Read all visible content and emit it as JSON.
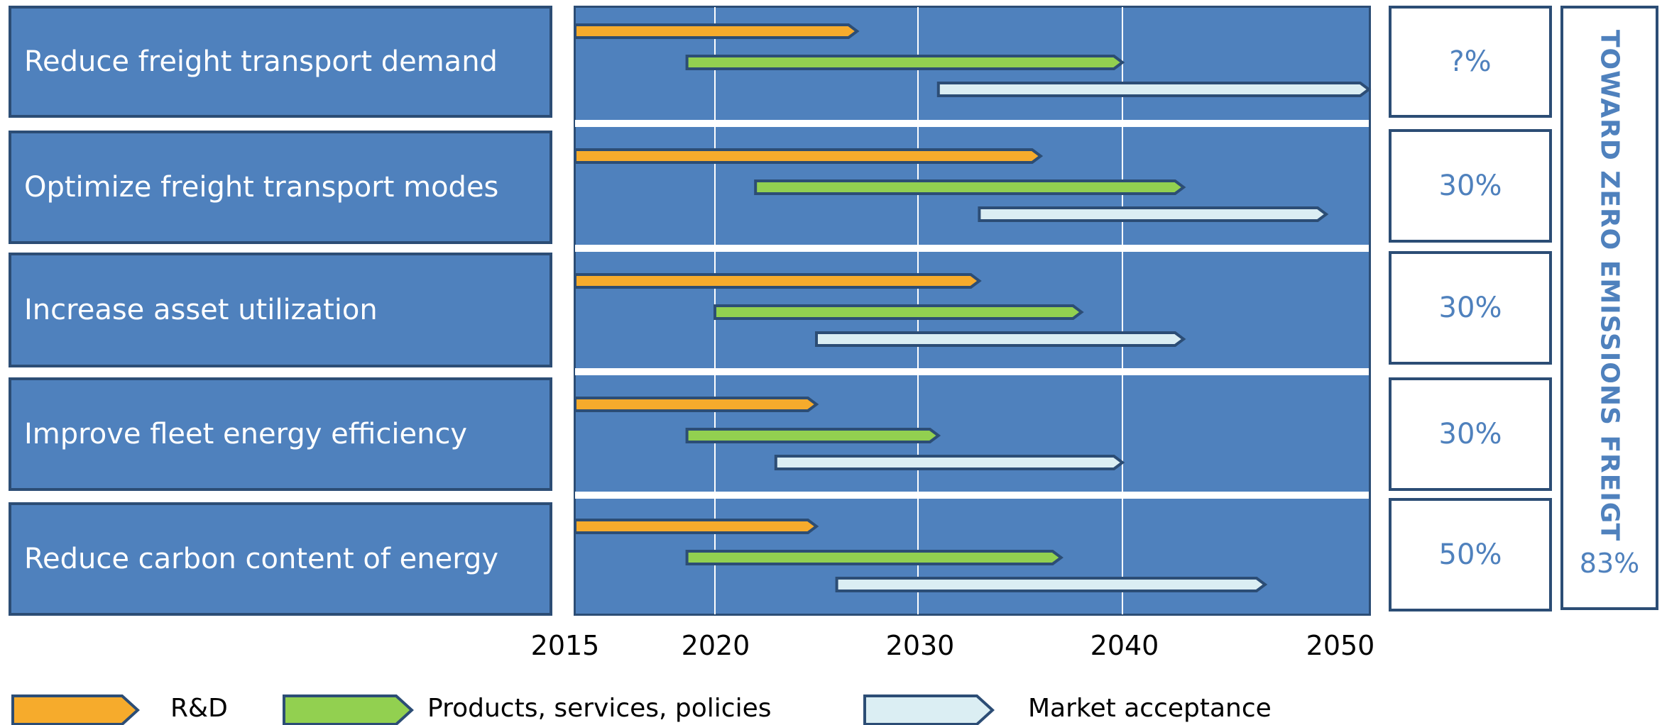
{
  "chart_data": {
    "type": "gantt",
    "x_ticks": [
      "2015",
      "2020",
      "2030",
      "2040",
      "2050"
    ],
    "xlim": [
      2015,
      2050
    ],
    "grid": true,
    "series": [
      {
        "name": "R&D",
        "color": "#f6ab2c"
      },
      {
        "name": "Products, services, policies",
        "color": "#92d050"
      },
      {
        "name": "Market acceptance",
        "color": "#dbeef3"
      }
    ],
    "rows": [
      {
        "label": "Reduce freight transport demand",
        "percent": "?%",
        "bars": [
          {
            "series": "R&D",
            "start": 2015,
            "end": 2027
          },
          {
            "series": "Products, services, policies",
            "start": 2019,
            "end": 2040
          },
          {
            "series": "Market acceptance",
            "start": 2031,
            "end": 2053
          }
        ]
      },
      {
        "label": "Optimize freight transport modes",
        "percent": "30%",
        "bars": [
          {
            "series": "R&D",
            "start": 2015,
            "end": 2036
          },
          {
            "series": "Products, services, policies",
            "start": 2022,
            "end": 2043
          },
          {
            "series": "Market acceptance",
            "start": 2033,
            "end": 2050
          }
        ]
      },
      {
        "label": "Increase asset utilization",
        "percent": "30%",
        "bars": [
          {
            "series": "R&D",
            "start": 2015,
            "end": 2033
          },
          {
            "series": "Products, services, policies",
            "start": 2020,
            "end": 2038
          },
          {
            "series": "Market acceptance",
            "start": 2025,
            "end": 2043
          }
        ]
      },
      {
        "label": "Improve fleet energy efficiency",
        "percent": "30%",
        "bars": [
          {
            "series": "R&D",
            "start": 2015,
            "end": 2025
          },
          {
            "series": "Products, services, policies",
            "start": 2019,
            "end": 2031
          },
          {
            "series": "Market acceptance",
            "start": 2023,
            "end": 2040
          }
        ]
      },
      {
        "label": "Reduce carbon content of energy",
        "percent": "50%",
        "bars": [
          {
            "series": "R&D",
            "start": 2015,
            "end": 2025
          },
          {
            "series": "Products, services, policies",
            "start": 2019,
            "end": 2037
          },
          {
            "series": "Market acceptance",
            "start": 2026,
            "end": 2047
          }
        ]
      }
    ],
    "total": {
      "title": "TOWARD ZERO EMISSIONS FREIGT",
      "value": "83%"
    }
  }
}
